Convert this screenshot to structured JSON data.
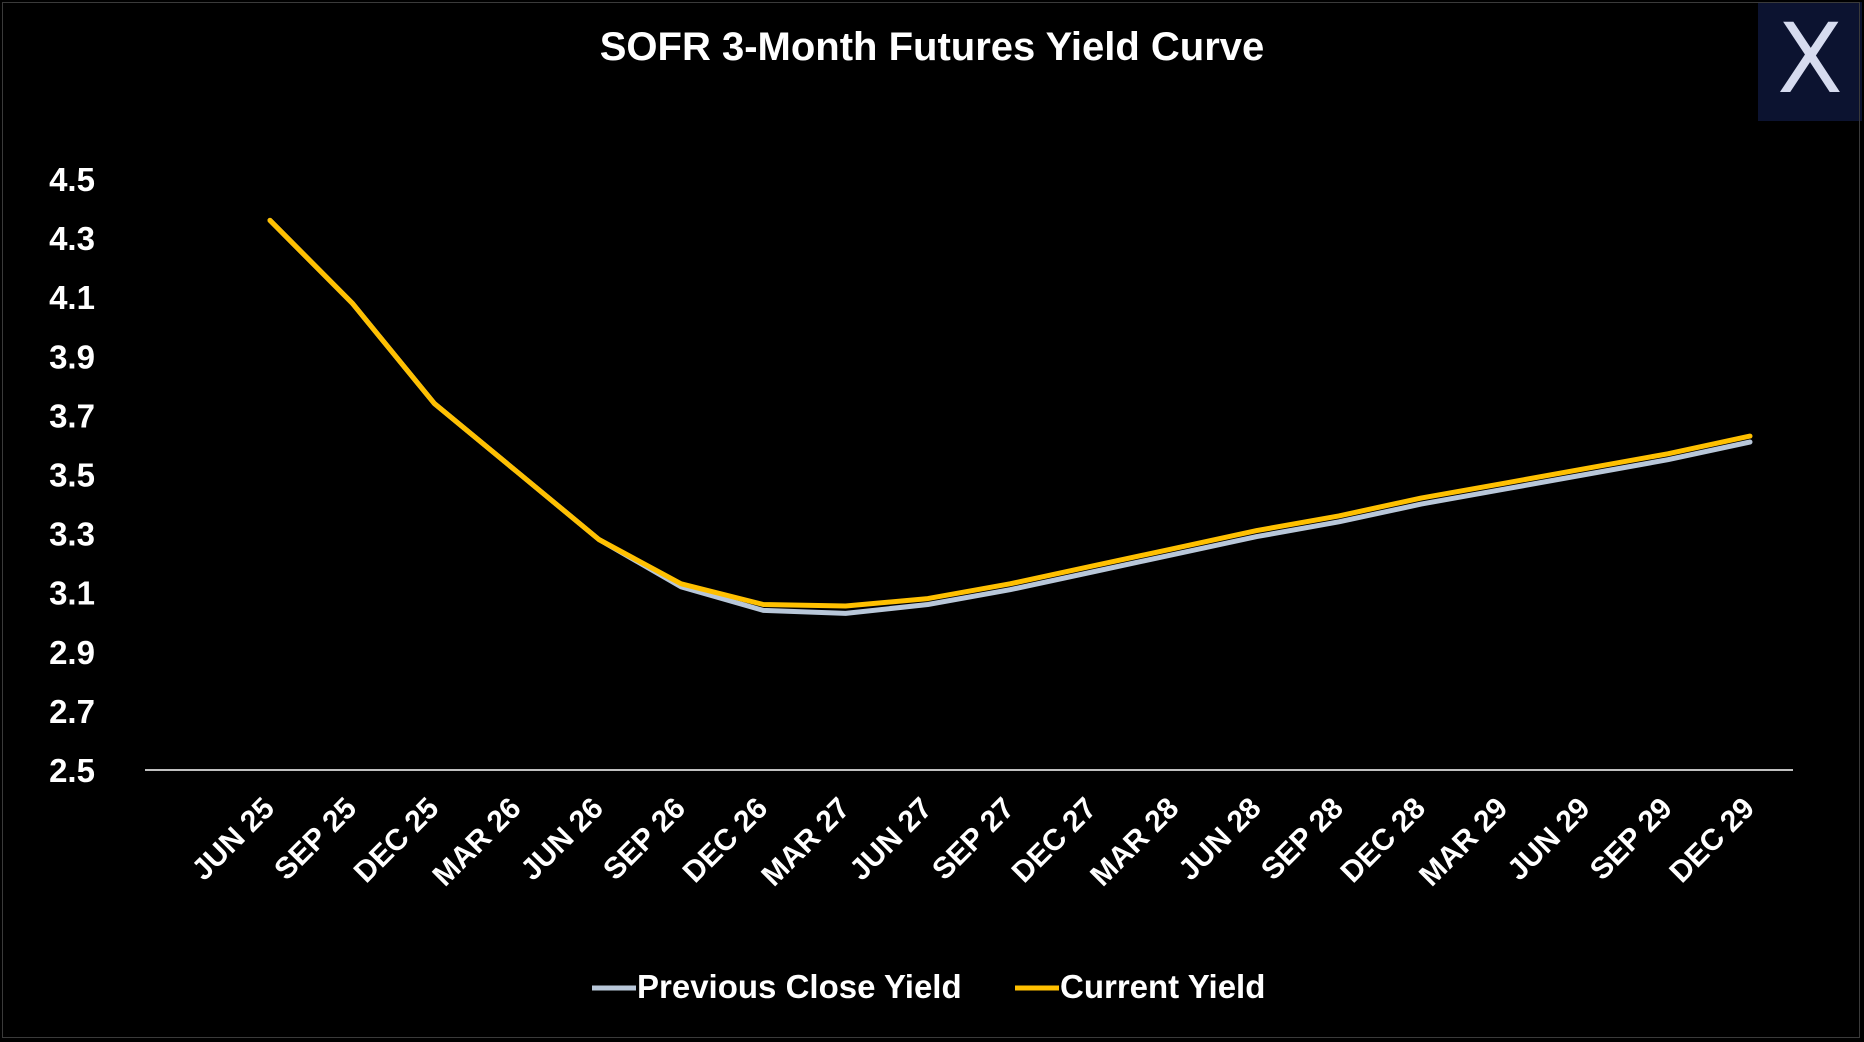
{
  "chart_data": {
    "type": "line",
    "title": "SOFR 3-Month Futures Yield Curve",
    "xlabel": "",
    "ylabel": "",
    "ylim": [
      2.5,
      4.5
    ],
    "yticks": [
      "4.5",
      "4.3",
      "4.1",
      "3.9",
      "3.7",
      "3.5",
      "3.3",
      "3.1",
      "2.9",
      "2.7",
      "2.5"
    ],
    "grid": false,
    "legend_position": "bottom",
    "categories": [
      "JUN 25",
      "SEP 25",
      "DEC 25",
      "MAR 26",
      "JUN 26",
      "SEP 26",
      "DEC 26",
      "MAR 27",
      "JUN 27",
      "SEP 27",
      "DEC 27",
      "MAR 28",
      "JUN 28",
      "SEP 28",
      "DEC 28",
      "MAR 29",
      "JUN 29",
      "SEP 29",
      "DEC 29"
    ],
    "series": [
      {
        "name": "Previous Close Yield",
        "color": "#b8c7d9",
        "values": [
          4.36,
          4.08,
          3.74,
          3.51,
          3.28,
          3.12,
          3.04,
          3.03,
          3.06,
          3.11,
          3.17,
          3.23,
          3.29,
          3.34,
          3.4,
          3.45,
          3.5,
          3.55,
          3.61
        ]
      },
      {
        "name": "Current Yield",
        "color": "#ffc000",
        "values": [
          4.36,
          4.08,
          3.74,
          3.51,
          3.28,
          3.13,
          3.06,
          3.055,
          3.08,
          3.13,
          3.19,
          3.25,
          3.31,
          3.36,
          3.42,
          3.47,
          3.52,
          3.57,
          3.63
        ]
      }
    ]
  },
  "logo": {
    "icon": "x-logo-icon",
    "letter": "X",
    "bg": "#0c1330",
    "fg": "#d6dbef"
  }
}
